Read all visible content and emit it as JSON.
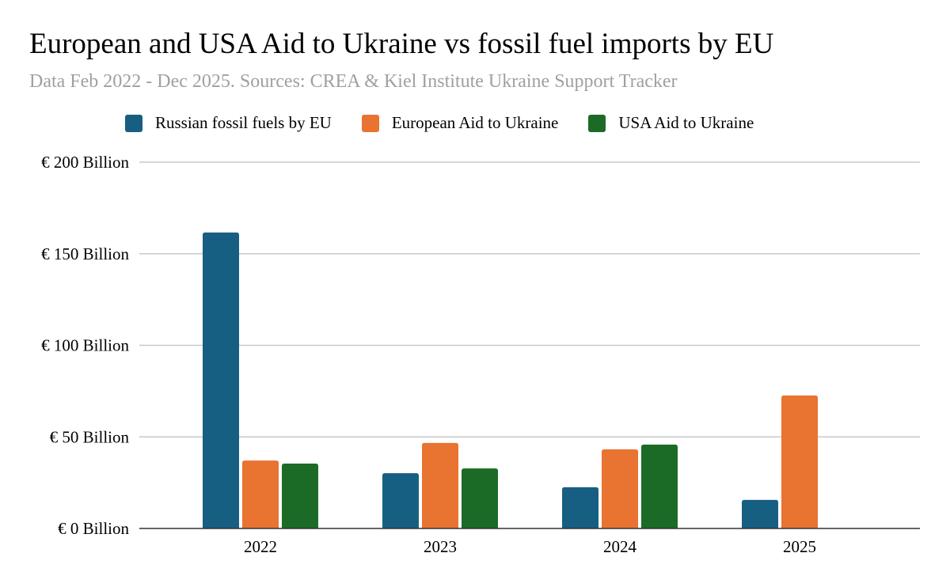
{
  "chart_data": {
    "type": "bar",
    "title": "European and USA Aid to Ukraine vs fossil fuel imports by EU",
    "subtitle": "Data Feb 2022 - Dec 2025. Sources: CREA & Kiel Institute Ukraine Support Tracker",
    "categories": [
      "2022",
      "2023",
      "2024",
      "2025"
    ],
    "series": [
      {
        "name": "Russian fossil fuels by EU",
        "color": "#175f82",
        "values": [
          161.6,
          30.2,
          22.5,
          15.6
        ]
      },
      {
        "name": "European Aid to Ukraine",
        "color": "#e97331",
        "values": [
          37.1,
          46.7,
          43.2,
          72.6
        ]
      },
      {
        "name": "USA Aid to Ukraine",
        "color": "#1b6b26",
        "values": [
          35.4,
          32.8,
          45.8,
          null
        ]
      }
    ],
    "yticks": [
      {
        "v": 0,
        "label": "€ 0 Billion"
      },
      {
        "v": 50,
        "label": "€ 50 Billion"
      },
      {
        "v": 100,
        "label": "€ 100 Billion"
      },
      {
        "v": 150,
        "label": "€ 150 Billion"
      },
      {
        "v": 200,
        "label": "€ 200 Billion"
      }
    ],
    "ylim": [
      0,
      200
    ],
    "grid": true,
    "legend": "top",
    "xlabel": "",
    "ylabel": ""
  }
}
